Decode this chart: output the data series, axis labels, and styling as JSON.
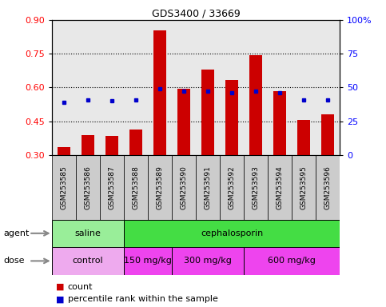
{
  "title": "GDS3400 / 33669",
  "samples": [
    "GSM253585",
    "GSM253586",
    "GSM253587",
    "GSM253588",
    "GSM253589",
    "GSM253590",
    "GSM253591",
    "GSM253592",
    "GSM253593",
    "GSM253594",
    "GSM253595",
    "GSM253596"
  ],
  "count_values": [
    0.335,
    0.39,
    0.385,
    0.415,
    0.855,
    0.595,
    0.68,
    0.635,
    0.745,
    0.585,
    0.455,
    0.48
  ],
  "percentile_values": [
    0.535,
    0.545,
    0.54,
    0.545,
    0.595,
    0.585,
    0.585,
    0.575,
    0.585,
    0.575,
    0.545,
    0.545
  ],
  "bar_bottom": 0.3,
  "ylim": [
    0.3,
    0.9
  ],
  "yticks_left": [
    0.3,
    0.45,
    0.6,
    0.75,
    0.9
  ],
  "yticks_right": [
    0,
    25,
    50,
    75,
    100
  ],
  "bar_color": "#cc0000",
  "dot_color": "#0000cc",
  "plot_bg_color": "#e8e8e8",
  "xtick_bg_color": "#cccccc",
  "agent_groups": [
    {
      "label": "saline",
      "start": 0,
      "end": 3,
      "color": "#99ee99"
    },
    {
      "label": "cephalosporin",
      "start": 3,
      "end": 12,
      "color": "#44dd44"
    }
  ],
  "dose_groups": [
    {
      "label": "control",
      "start": 0,
      "end": 3,
      "color": "#eeaaee"
    },
    {
      "label": "150 mg/kg",
      "start": 3,
      "end": 5,
      "color": "#ee44ee"
    },
    {
      "label": "300 mg/kg",
      "start": 5,
      "end": 8,
      "color": "#ee44ee"
    },
    {
      "label": "600 mg/kg",
      "start": 8,
      "end": 12,
      "color": "#ee44ee"
    }
  ],
  "legend_count_label": "count",
  "legend_percentile_label": "percentile rank within the sample"
}
